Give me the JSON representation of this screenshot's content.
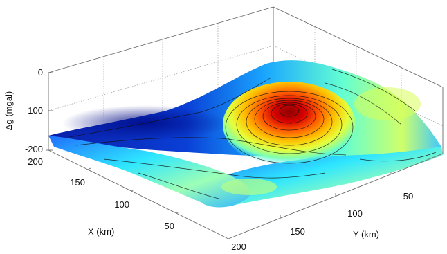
{
  "chart_data": {
    "type": "surface3d",
    "zlabel": "Δg (mgal)",
    "xlabel": "X (km)",
    "ylabel": "Y (km)",
    "x_ticks": [
      "50",
      "100",
      "150",
      "200"
    ],
    "y_ticks": [
      "50",
      "100",
      "150",
      "200"
    ],
    "z_ticks": [
      "0",
      "-100",
      "-200"
    ],
    "xlim": [
      0,
      200
    ],
    "ylim": [
      0,
      200
    ],
    "zlim": [
      -200,
      0
    ],
    "grid": true,
    "colormap": "jet",
    "contours": true,
    "peak": {
      "x": 115,
      "y": 160,
      "z": -60
    },
    "colors": {
      "low": "#00008f",
      "mid": "#00ffff",
      "high": "#800000"
    }
  }
}
